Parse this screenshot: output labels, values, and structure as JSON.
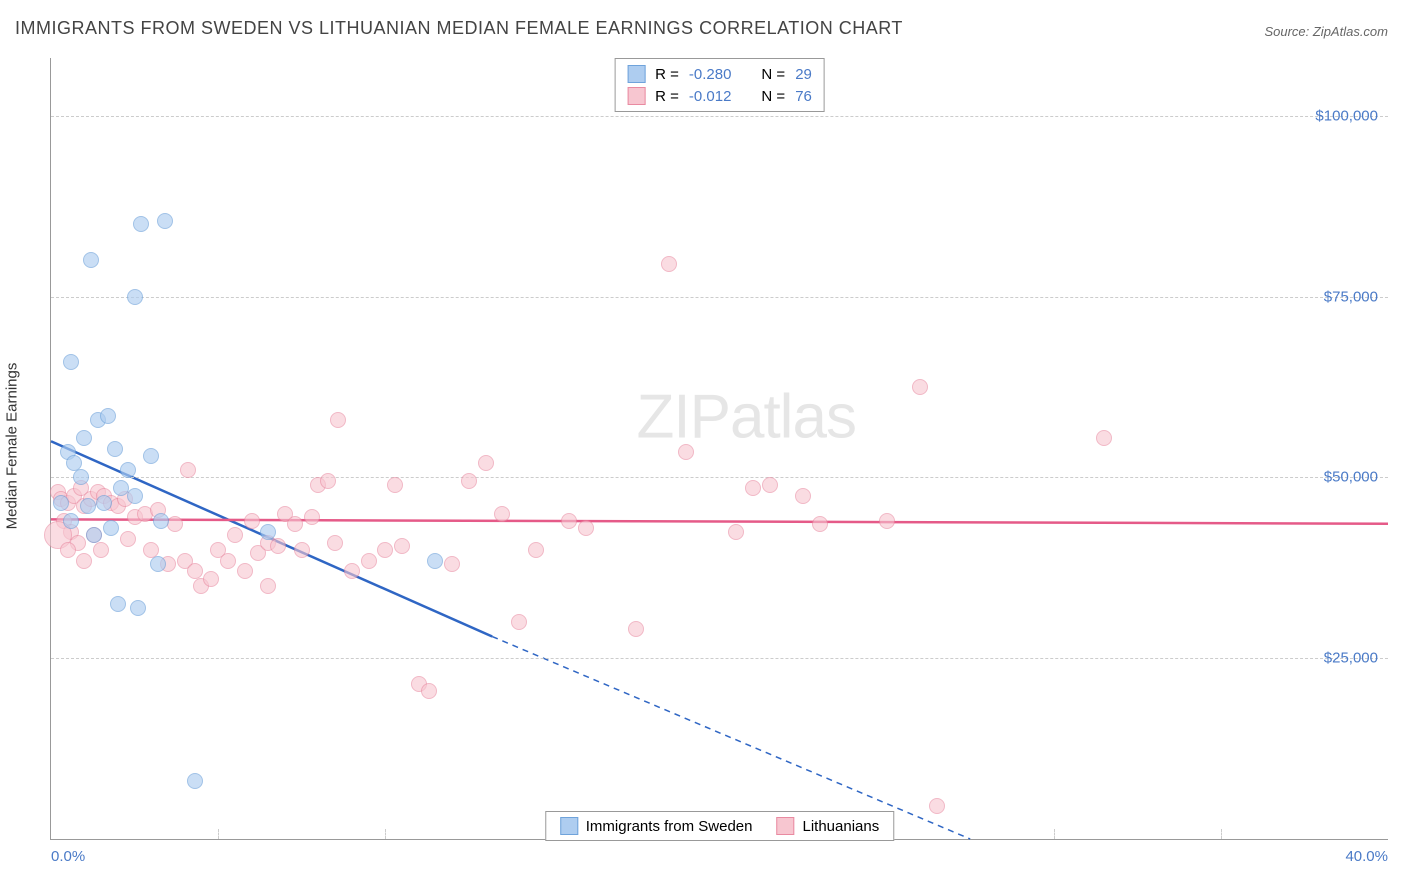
{
  "title": "IMMIGRANTS FROM SWEDEN VS LITHUANIAN MEDIAN FEMALE EARNINGS CORRELATION CHART",
  "source_label": "Source: ",
  "source_name": "ZipAtlas.com",
  "ylabel": "Median Female Earnings",
  "watermark": "ZIPatlas",
  "chart": {
    "type": "scatter",
    "xlim": [
      0,
      40
    ],
    "ylim": [
      0,
      108000
    ],
    "x_ticks": [
      0,
      40
    ],
    "x_tick_labels": [
      "0.0%",
      "40.0%"
    ],
    "x_minor_ticks": [
      5,
      10,
      15,
      20,
      25,
      30,
      35
    ],
    "y_ticks": [
      25000,
      50000,
      75000,
      100000
    ],
    "y_tick_labels": [
      "$25,000",
      "$50,000",
      "$75,000",
      "$100,000"
    ],
    "background_color": "#ffffff",
    "grid_color": "#cccccc",
    "axis_color": "#999999",
    "tick_label_color": "#4a7ac7",
    "point_radius": 8,
    "point_stroke_width": 1.5,
    "trend_line_width": 2.5
  },
  "series": [
    {
      "name": "Immigrants from Sweden",
      "fill_color": "#aecdf0",
      "stroke_color": "#6fa3db",
      "fill_opacity": 0.65,
      "R_label": "R = ",
      "R_value": "-0.280",
      "N_label": "N = ",
      "N_value": "29",
      "trend": {
        "x1": 0,
        "y1": 55000,
        "x2": 13.2,
        "y2": 28000,
        "extend_x2": 27.5,
        "extend_y2": 0,
        "color": "#2f66c4"
      },
      "points": [
        [
          0.6,
          66000
        ],
        [
          1.2,
          80000
        ],
        [
          2.7,
          85000
        ],
        [
          3.4,
          85500
        ],
        [
          2.5,
          75000
        ],
        [
          0.5,
          53500
        ],
        [
          0.7,
          52000
        ],
        [
          1.0,
          55500
        ],
        [
          1.4,
          58000
        ],
        [
          1.7,
          58500
        ],
        [
          1.9,
          54000
        ],
        [
          2.1,
          48500
        ],
        [
          2.3,
          51000
        ],
        [
          0.3,
          46500
        ],
        [
          0.6,
          44000
        ],
        [
          1.1,
          46000
        ],
        [
          1.6,
          46500
        ],
        [
          1.8,
          43000
        ],
        [
          2.5,
          47500
        ],
        [
          3.0,
          53000
        ],
        [
          3.3,
          44000
        ],
        [
          2.0,
          32500
        ],
        [
          2.6,
          32000
        ],
        [
          1.3,
          42000
        ],
        [
          3.2,
          38000
        ],
        [
          6.5,
          42500
        ],
        [
          11.5,
          38500
        ],
        [
          4.3,
          8000
        ],
        [
          0.9,
          50000
        ]
      ]
    },
    {
      "name": "Lithuanians",
      "fill_color": "#f7c6d0",
      "stroke_color": "#e98aa1",
      "fill_opacity": 0.6,
      "R_label": "R = ",
      "R_value": "-0.012",
      "N_label": "N = ",
      "N_value": "76",
      "trend": {
        "x1": 0,
        "y1": 44200,
        "x2": 40,
        "y2": 43600,
        "color": "#e55a88"
      },
      "points": [
        [
          0.2,
          48000
        ],
        [
          0.3,
          47000
        ],
        [
          0.5,
          46500
        ],
        [
          0.7,
          47500
        ],
        [
          0.9,
          48500
        ],
        [
          1.0,
          46000
        ],
        [
          1.2,
          47000
        ],
        [
          1.4,
          48000
        ],
        [
          1.6,
          47500
        ],
        [
          1.8,
          46500
        ],
        [
          2.0,
          46000
        ],
        [
          2.2,
          47000
        ],
        [
          0.4,
          44000
        ],
        [
          0.6,
          42500
        ],
        [
          0.8,
          41000
        ],
        [
          1.3,
          42000
        ],
        [
          1.5,
          40000
        ],
        [
          2.5,
          44500
        ],
        [
          2.8,
          45000
        ],
        [
          3.0,
          40000
        ],
        [
          3.5,
          38000
        ],
        [
          3.7,
          43500
        ],
        [
          4.0,
          38500
        ],
        [
          4.3,
          37000
        ],
        [
          4.5,
          35000
        ],
        [
          4.8,
          36000
        ],
        [
          5.0,
          40000
        ],
        [
          5.3,
          38500
        ],
        [
          5.5,
          42000
        ],
        [
          5.8,
          37000
        ],
        [
          6.0,
          44000
        ],
        [
          6.2,
          39500
        ],
        [
          6.5,
          41000
        ],
        [
          6.8,
          40500
        ],
        [
          7.0,
          45000
        ],
        [
          7.3,
          43500
        ],
        [
          7.5,
          40000
        ],
        [
          7.8,
          44500
        ],
        [
          8.0,
          49000
        ],
        [
          8.3,
          49500
        ],
        [
          8.5,
          41000
        ],
        [
          9.0,
          37000
        ],
        [
          9.5,
          38500
        ],
        [
          10.0,
          40000
        ],
        [
          10.3,
          49000
        ],
        [
          10.5,
          40500
        ],
        [
          11.0,
          21500
        ],
        [
          11.3,
          20500
        ],
        [
          12.0,
          38000
        ],
        [
          12.5,
          49500
        ],
        [
          13.0,
          52000
        ],
        [
          13.5,
          45000
        ],
        [
          14.0,
          30000
        ],
        [
          14.5,
          40000
        ],
        [
          15.5,
          44000
        ],
        [
          16.0,
          43000
        ],
        [
          17.5,
          29000
        ],
        [
          18.5,
          79500
        ],
        [
          19.0,
          53500
        ],
        [
          20.5,
          42500
        ],
        [
          21.0,
          48500
        ],
        [
          21.5,
          49000
        ],
        [
          22.5,
          47500
        ],
        [
          23.0,
          43500
        ],
        [
          25.0,
          44000
        ],
        [
          26.0,
          62500
        ],
        [
          26.5,
          4500
        ],
        [
          31.5,
          55500
        ],
        [
          8.6,
          58000
        ],
        [
          4.1,
          51000
        ],
        [
          0.2,
          42000,
          14
        ],
        [
          0.5,
          40000
        ],
        [
          1.0,
          38500
        ],
        [
          2.3,
          41500
        ],
        [
          3.2,
          45500
        ],
        [
          6.5,
          35000
        ]
      ]
    }
  ],
  "legend_bottom": [
    {
      "label": "Immigrants from Sweden",
      "fill": "#aecdf0",
      "stroke": "#6fa3db"
    },
    {
      "label": "Lithuanians",
      "fill": "#f7c6d0",
      "stroke": "#e98aa1"
    }
  ]
}
